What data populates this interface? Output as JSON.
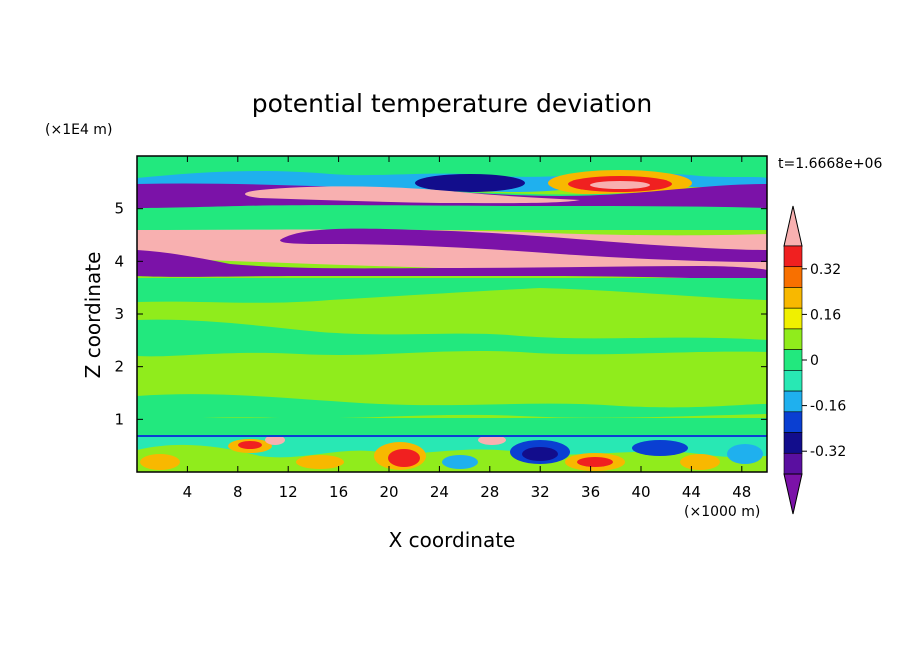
{
  "chart_data": {
    "type": "heatmap",
    "title": "potential temperature deviation",
    "xlabel": "X coordinate",
    "ylabel": "Z coordinate",
    "x_unit": "(×1000 m)",
    "y_unit": "(×1E4 m)",
    "time_label": "t=1.6668e+06",
    "xlim": [
      0,
      50
    ],
    "ylim": [
      0,
      6
    ],
    "xticks": [
      4,
      8,
      12,
      16,
      20,
      24,
      28,
      32,
      36,
      40,
      44,
      48
    ],
    "yticks": [
      1,
      2,
      3,
      4,
      5
    ],
    "colorbar": {
      "levels": [
        -0.48,
        -0.4,
        -0.32,
        -0.24,
        -0.16,
        -0.08,
        0,
        0.08,
        0.16,
        0.24,
        0.32,
        0.4,
        0.48
      ],
      "colors": [
        "#7b12a8",
        "#5a0fa0",
        "#120d8c",
        "#0a3fd2",
        "#1fb0ee",
        "#28e8b4",
        "#22e87e",
        "#90ec1c",
        "#f0f000",
        "#f8b800",
        "#f87000",
        "#f02020",
        "#f8b0b0"
      ],
      "tick_labels": [
        "0.32",
        "0.16",
        "0",
        "-0.16",
        "-0.32"
      ],
      "tick_values": [
        0.32,
        0.16,
        0,
        -0.16,
        -0.32
      ],
      "extend": "both"
    },
    "layers": [
      {
        "z_range": [
          5.75,
          6.0
        ],
        "value": 0.04
      },
      {
        "z_range": [
          5.45,
          5.75
        ],
        "value": -0.12
      },
      {
        "z_range": [
          5.0,
          5.45
        ],
        "value": -0.44
      },
      {
        "z_range": [
          4.55,
          5.0
        ],
        "value": 0.04
      },
      {
        "z_range": [
          4.25,
          4.55
        ],
        "value": 0.46
      },
      {
        "z_range": [
          3.75,
          4.25
        ],
        "value": -0.44
      },
      {
        "z_range": [
          0.7,
          3.75
        ],
        "value": 0.05
      },
      {
        "z_range": [
          0.0,
          0.7
        ],
        "value": "mixed"
      }
    ]
  }
}
